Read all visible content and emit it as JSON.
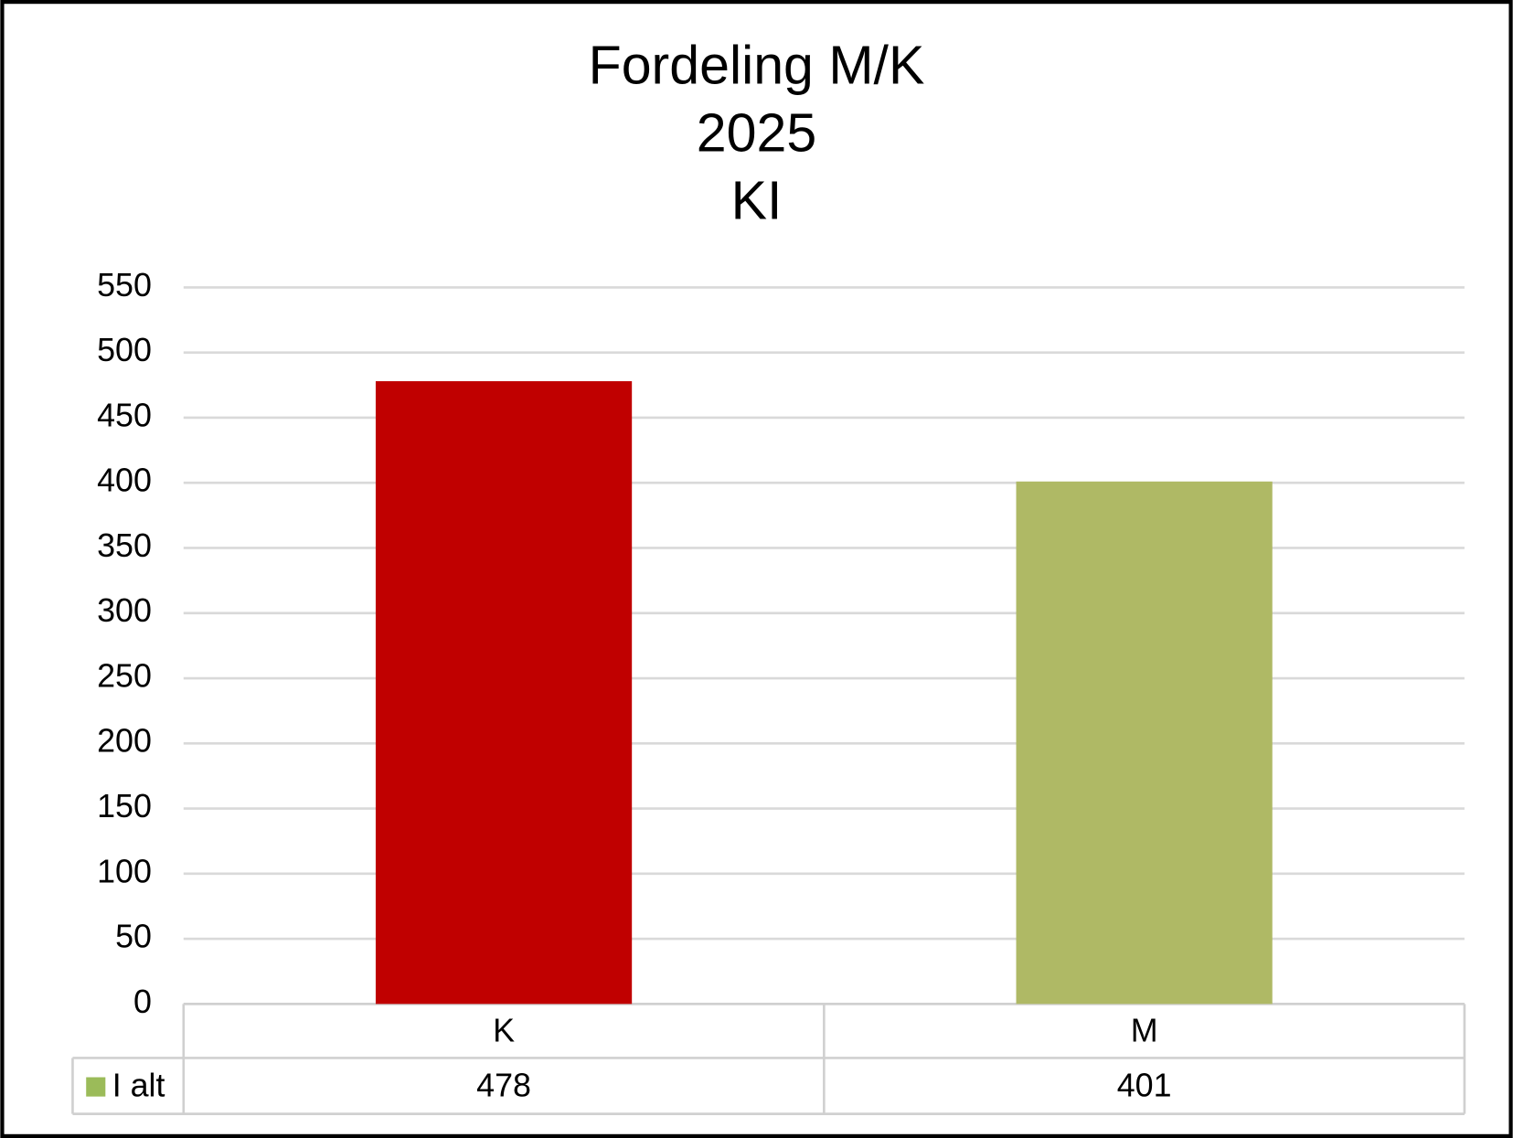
{
  "chart_data": {
    "type": "bar",
    "title": [
      "Fordeling M/K",
      "2025",
      "KI"
    ],
    "categories": [
      "K",
      "M"
    ],
    "series": [
      {
        "name": "I alt",
        "color": "#9bbb59",
        "colors": [
          "#c00000",
          "#afb965"
        ],
        "values": [
          478,
          401
        ]
      }
    ],
    "ylim": [
      0,
      550
    ],
    "yticks": [
      0,
      50,
      100,
      150,
      200,
      250,
      300,
      350,
      400,
      450,
      500,
      550
    ],
    "grid": true,
    "data_table": true
  }
}
